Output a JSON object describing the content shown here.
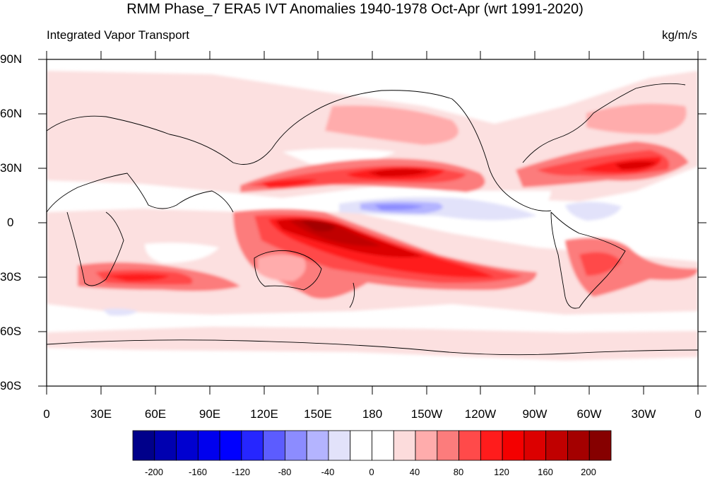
{
  "title": "RMM Phase_7 ERA5 IVT Anomalies 1940-1978 Oct-Apr (wrt 1991-2020)",
  "left_string": "Integrated Vapor Transport",
  "right_string": "kg/m/s",
  "lat_labels": [
    "90N",
    "60N",
    "30N",
    "0",
    "30S",
    "60S",
    "90S"
  ],
  "lon_labels": [
    "0",
    "30E",
    "60E",
    "90E",
    "120E",
    "150E",
    "180",
    "150W",
    "120W",
    "90W",
    "60W",
    "30W",
    "0"
  ],
  "colorbar": {
    "labels": [
      "-200",
      "-160",
      "-120",
      "-80",
      "-40",
      "0",
      "40",
      "80",
      "120",
      "160",
      "200"
    ],
    "colors": [
      "#00008a",
      "#0000b0",
      "#0000d0",
      "#0000ee",
      "#0000ff",
      "#2626ff",
      "#5c5cff",
      "#8c8cff",
      "#b4b4ff",
      "#e2e2fa",
      "#ffffff",
      "#ffffff",
      "#fcdcdc",
      "#ffacac",
      "#fc7c7c",
      "#ff4a4a",
      "#ff1c1c",
      "#f40000",
      "#dc0000",
      "#c00000",
      "#a40000",
      "#860000"
    ]
  }
}
